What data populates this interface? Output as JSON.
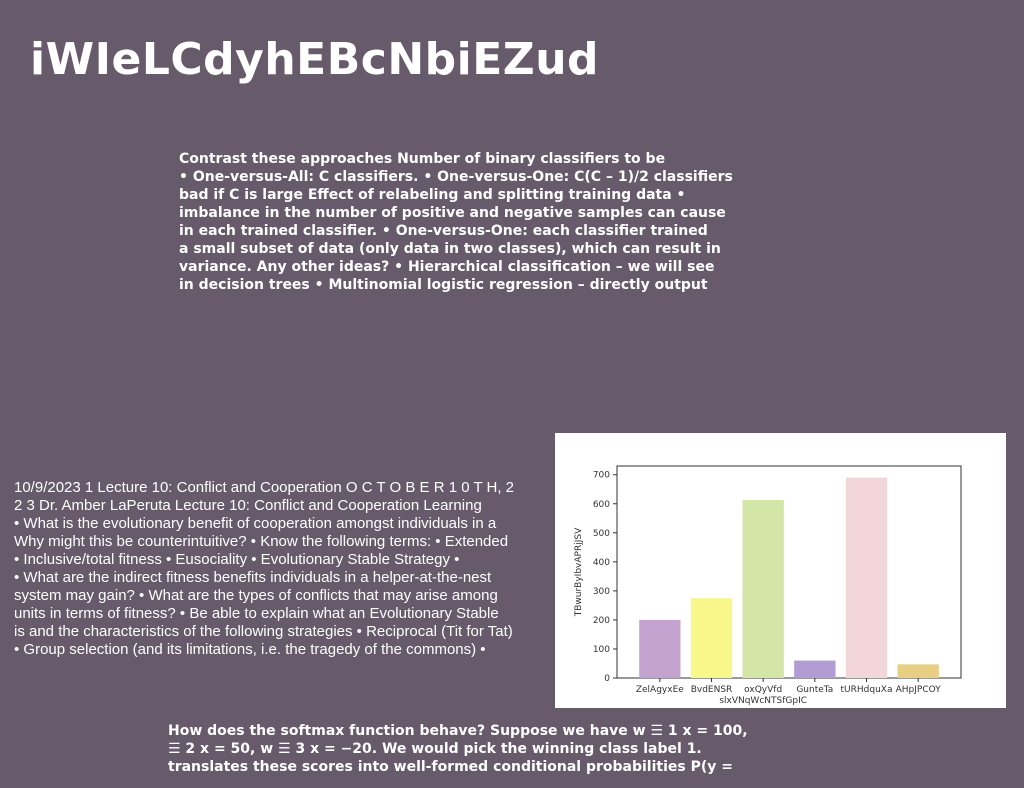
{
  "title": "iWIeLCdyhEBcNbiEZud",
  "top_paragraph": [
    "Contrast these approaches Number of binary classifiers to be",
    "• One-versus-All: C classifiers. • One-versus-One: C(C – 1)/2 classifiers",
    "bad if C is large Effect of relabeling and splitting training data •",
    "imbalance in the number of positive and negative samples can cause",
    "in each trained classifier. • One-versus-One: each classifier trained",
    "a small subset of data (only data in two classes), which can result in",
    "variance. Any other ideas? • Hierarchical classification – we will see",
    "in decision trees • Multinomial logistic regression – directly output"
  ],
  "lecture_paragraph": [
    "10/9/2023 1 Lecture 10: Conflict and Cooperation O C T O B E R 1 0 T H, 2",
    "2 3 Dr. Amber LaPeruta Lecture 10: Conflict and Cooperation Learning",
    "• What is the evolutionary benefit of cooperation amongst individuals in a",
    "Why might this be counterintuitive? • Know the following terms: • Extended",
    "• Inclusive/total fitness • Eusociality • Evolutionary Stable Strategy •",
    "• What are the indirect fitness benefits individuals in a helper-at-the-nest",
    "system may gain? • What are the types of conflicts that may arise among",
    "units in terms of fitness? • Be able to explain what an Evolutionary Stable",
    "is and the characteristics of the following strategies • Reciprocal (Tit for Tat)",
    "• Group selection (and its limitations, i.e. the tragedy of the commons) •"
  ],
  "bottom_paragraph": [
    "How does the softmax function behave? Suppose we have w ☰ 1 x = 100,",
    "☰ 2 x = 50, w ☰ 3 x = −20. We would pick the winning class label 1.",
    "translates these scores into well-formed conditional probabilities P(y ="
  ],
  "chart_data": {
    "type": "bar",
    "title": "",
    "xlabel": "",
    "ylabel": "TBwurByIbvAPRjJSV",
    "ylim": [
      0,
      730
    ],
    "yticks": [
      0,
      100,
      200,
      300,
      400,
      500,
      600,
      700
    ],
    "grid": false,
    "categories": [
      {
        "label": [
          "ZelAgyxEe"
        ],
        "value": 200,
        "color": "#c4a3d0"
      },
      {
        "label": [
          "BvdENSR"
        ],
        "value": 275,
        "color": "#f7f78a"
      },
      {
        "label": [
          "oxQyVfd",
          "slxVNqWcNTSfGpIC"
        ],
        "value": 613,
        "color": "#d3e6a8"
      },
      {
        "label": [
          "GunteTa"
        ],
        "value": 60,
        "color": "#b19cd3"
      },
      {
        "label": [
          "tURHdquXa"
        ],
        "value": 690,
        "color": "#f2d6da"
      },
      {
        "label": [
          "AHpJPCOY"
        ],
        "value": 47,
        "color": "#e8cf83"
      }
    ]
  }
}
